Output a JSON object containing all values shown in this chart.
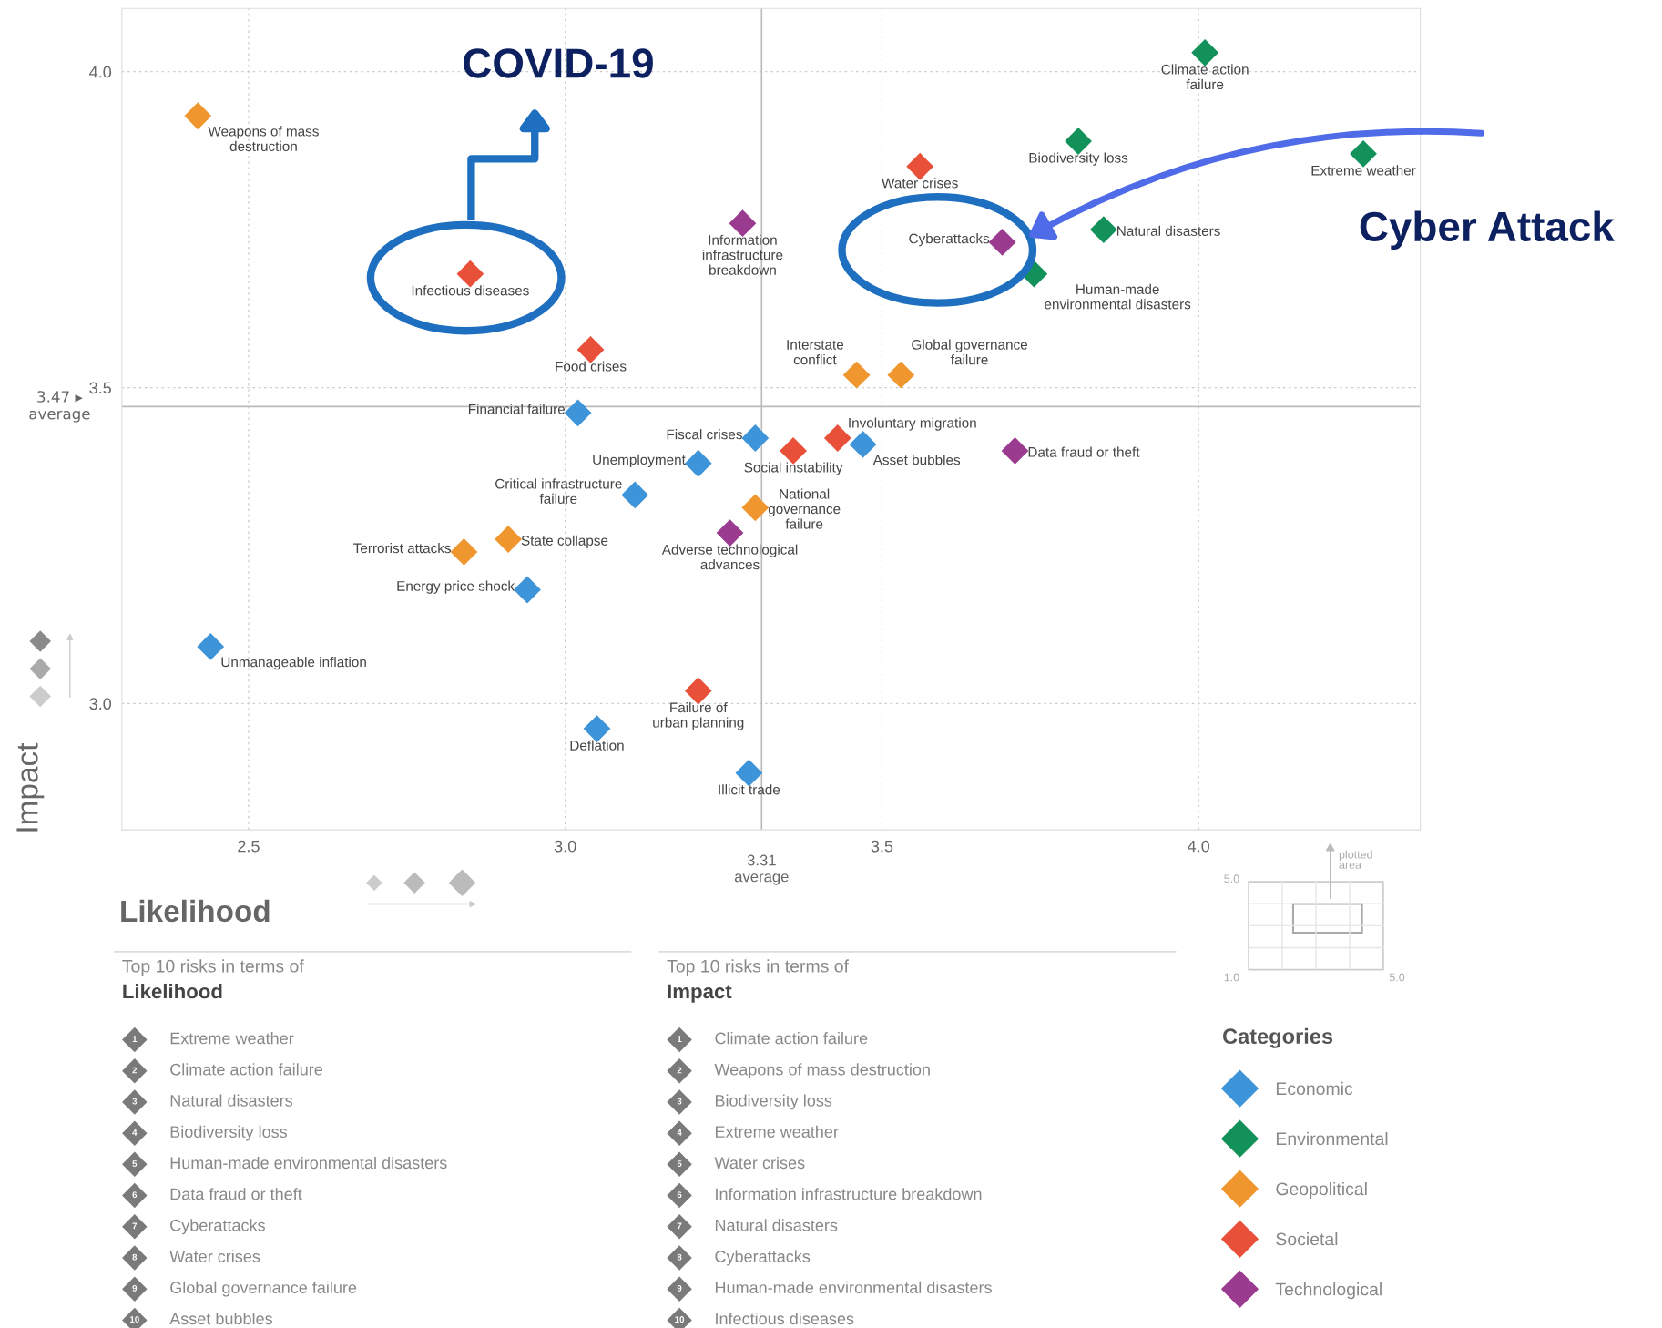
{
  "chart_data": {
    "type": "scatter",
    "xlabel": "Likelihood",
    "ylabel": "Impact",
    "legend_title": "Categories",
    "legend": "bottom right",
    "marker": "diamond",
    "grid": true,
    "xlim": [
      2.3,
      4.35
    ],
    "ylim": [
      2.8,
      4.1
    ],
    "xticks": [
      2.5,
      {
        "value": 3.0,
        "label": "3.0"
      },
      3.5,
      {
        "value": 4.0,
        "label": "4.0"
      }
    ],
    "yticks": [
      {
        "value": 3.0,
        "label": "3.0"
      },
      {
        "value": 3.5,
        "label": "3.5"
      },
      {
        "value": 4.0,
        "label": "4.0"
      }
    ],
    "ref_lines": [
      {
        "axis": "x",
        "value": 3.31,
        "label": "3.31\naverage",
        "color": "#bbbbbb"
      },
      {
        "axis": "y",
        "value": 3.47,
        "label": "3.47 ▸\naverage",
        "color": "#bbbbbb"
      }
    ],
    "series": [
      {
        "name": "Economic",
        "color": "#3d94d8",
        "x": [
          3.02,
          3.3,
          3.21,
          3.47,
          3.11,
          2.94,
          2.44,
          3.05,
          3.29
        ],
        "values": [
          3.46,
          3.42,
          3.38,
          3.41,
          3.33,
          3.18,
          3.09,
          2.96,
          2.89
        ],
        "value_labels": [
          "Financial failure",
          "Fiscal crises",
          "Unemployment",
          "Asset bubbles",
          "Critical infrastructure\nfailure",
          "Energy price shock",
          "Unmanageable inflation",
          "Deflation",
          "Illicit trade"
        ]
      },
      {
        "name": "Environmental",
        "color": "#12925a",
        "x": [
          4.01,
          3.81,
          4.26,
          3.85,
          3.74
        ],
        "values": [
          4.03,
          3.89,
          3.87,
          3.75,
          3.68
        ],
        "value_labels": [
          "Climate action\nfailure",
          "Biodiversity loss",
          "Extreme weather",
          "Natural disasters",
          "Human-made\nenvironmental disasters"
        ]
      },
      {
        "name": "Geopolitical",
        "color": "#f0962e",
        "x": [
          2.42,
          3.46,
          3.53,
          3.3,
          2.91,
          2.84
        ],
        "values": [
          3.93,
          3.52,
          3.52,
          3.31,
          3.26,
          3.24
        ],
        "value_labels": [
          "Weapons of mass\ndestruction",
          "Interstate\nconflict",
          "Global governance\nfailure",
          "National\ngovernance\nfailure",
          "State collapse",
          "Terrorist attacks"
        ]
      },
      {
        "name": "Societal",
        "color": "#e8503a",
        "x": [
          3.56,
          2.85,
          3.04,
          3.43,
          3.36,
          3.21
        ],
        "values": [
          3.85,
          3.68,
          3.56,
          3.42,
          3.4,
          3.02
        ],
        "value_labels": [
          "Water crises",
          "Infectious diseases",
          "Food crises",
          "Involuntary migration",
          "Social instability",
          "Failure of\nurban planning"
        ]
      },
      {
        "name": "Technological",
        "color": "#9a3b8f",
        "x": [
          3.28,
          3.69,
          3.71,
          3.26
        ],
        "values": [
          3.76,
          3.73,
          3.4,
          3.27
        ],
        "value_labels": [
          "Information\ninfrastructure\nbreakdown",
          "Cyberattacks",
          "Data fraud or theft",
          "Adverse technological\nadvances"
        ]
      }
    ],
    "annotations": [
      "COVID-19",
      "Cyber Attack",
      "Top 10 risks in terms of",
      "Likelihood",
      "1 Extreme weather",
      "2 Climate action failure",
      "3 Natural disasters",
      "4 Biodiversity loss",
      "5 Human-made environmental disasters",
      "6 Data fraud or theft",
      "7 Cyberattacks",
      "8 Water crises",
      "9 Global governance failure",
      "10 Asset bubbles",
      "Top 10 risks in terms of",
      "Impact",
      "1 Climate action failure",
      "2 Weapons of mass destruction",
      "3 Biodiversity loss",
      "4 Extreme weather",
      "5 Water crises",
      "6 Information infrastructure breakdown",
      "7 Natural disasters",
      "8 Cyberattacks",
      "9 Human-made environmental disasters",
      "10 Infectious diseases",
      "plotted\narea",
      "5.0",
      "1.0",
      "5.0"
    ]
  }
}
